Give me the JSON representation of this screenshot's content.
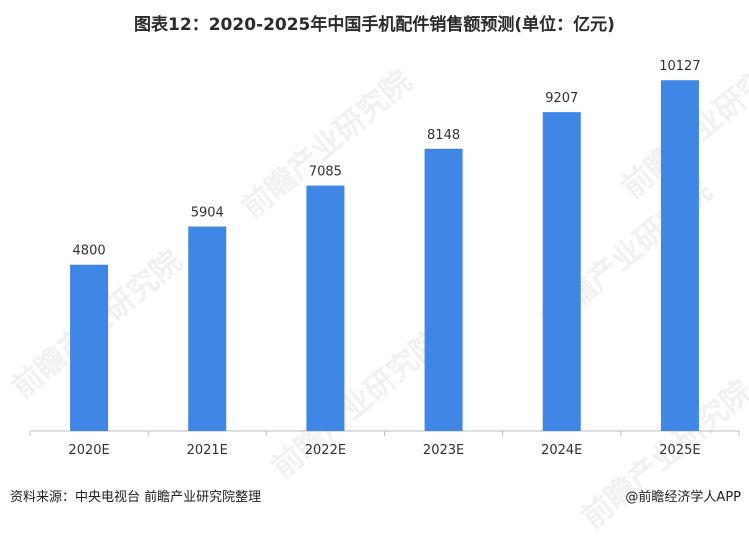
{
  "title": "图表12：2020-2025年中国手机配件销售额预测(单位：亿元)",
  "footer": {
    "source": "资料来源：中央电视台 前瞻产业研究院整理",
    "brand": "@前瞻经济学人APP"
  },
  "watermark": "前瞻产业研究院",
  "colors": {
    "bar": "#3f86e5",
    "axis": "#bfbfbf",
    "text": "#333333"
  },
  "chart_data": {
    "type": "bar",
    "title": "图表12：2020-2025年中国手机配件销售额预测(单位：亿元)",
    "categories": [
      "2020E",
      "2021E",
      "2022E",
      "2023E",
      "2024E",
      "2025E"
    ],
    "values": [
      4800,
      5904,
      7085,
      8148,
      9207,
      10127
    ],
    "xlabel": "",
    "ylabel": "",
    "ylim": [
      0,
      11000
    ],
    "grid": false,
    "legend": "none",
    "data_labels": true
  }
}
